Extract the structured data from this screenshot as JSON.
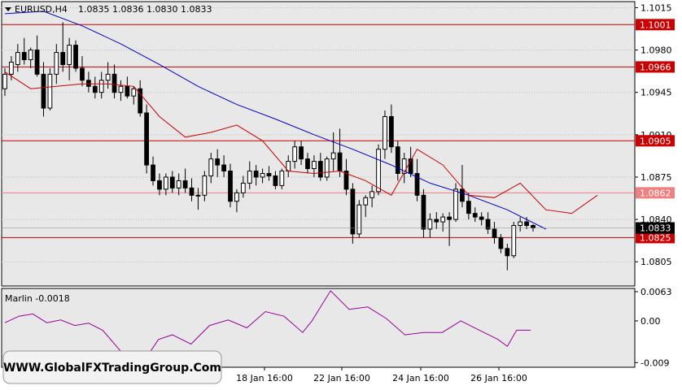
{
  "header": {
    "symbol_label": "EURUSD,H4",
    "ohlc_label": "1.0835 1.0836 1.0830 1.0833",
    "dropdown_icon": "triangle-down-icon"
  },
  "indicator": {
    "label": "Marlin -0.0018",
    "axis_ticks": [
      "0.0063",
      "0.00",
      "-0.009"
    ]
  },
  "watermark": "WWW.GlobalFXTradingGroup.Com",
  "colors": {
    "background": "#ffffff",
    "plot_bg": "#e8e8e8",
    "grid": "#bdbdbd",
    "level_line": "#cc0000",
    "level_label_bg": "#cc0000",
    "level_label_text": "#ffffff",
    "light_level_bg": "#f08080",
    "slow_ma": "#0000cc",
    "fast_ma": "#cc0000",
    "marlin": "#990099",
    "candle": "#000000",
    "price_label_bg": "#000000"
  },
  "chart_data": {
    "type": "candlestick",
    "price_axis": {
      "ticks": [
        "1.1015",
        "1.0980",
        "1.0945",
        "1.0910",
        "1.0875",
        "1.0840",
        "1.0805"
      ],
      "range": [
        1.0785,
        1.102
      ]
    },
    "time_axis": {
      "labels": [
        "18 Jan 16:00",
        "22 Jan 16:00",
        "24 Jan 16:00",
        "26 Jan 16:00"
      ]
    },
    "levels": [
      {
        "value": 1.1001,
        "label": "1.1001",
        "style": "line"
      },
      {
        "value": 1.0966,
        "label": "1.0966",
        "style": "line"
      },
      {
        "value": 1.0905,
        "label": "1.0905",
        "style": "line"
      },
      {
        "value": 1.0862,
        "label": "1.0862",
        "style": "light"
      },
      {
        "value": 1.0825,
        "label": "1.0825",
        "style": "line"
      }
    ],
    "current_price": {
      "value": 1.0833,
      "label": "1.0833"
    },
    "candles": [
      [
        1.0948,
        1.0965,
        1.0942,
        1.096
      ],
      [
        1.096,
        1.0975,
        1.0955,
        1.097
      ],
      [
        1.0968,
        1.0985,
        1.0962,
        1.0978
      ],
      [
        1.0978,
        1.099,
        1.0968,
        1.0972
      ],
      [
        1.0972,
        1.0982,
        1.0965,
        1.098
      ],
      [
        1.098,
        1.0992,
        1.0958,
        1.096
      ],
      [
        1.096,
        1.097,
        1.0925,
        1.0932
      ],
      [
        1.0932,
        1.0965,
        1.093,
        1.096
      ],
      [
        1.096,
        1.0985,
        1.0952,
        1.0978
      ],
      [
        1.0978,
        1.1003,
        1.0962,
        1.0968
      ],
      [
        1.0968,
        1.099,
        1.0955,
        1.0984
      ],
      [
        1.0984,
        1.0988,
        1.0962,
        1.0965
      ],
      [
        1.0965,
        1.0975,
        1.095,
        1.0955
      ],
      [
        1.0955,
        1.0962,
        1.0945,
        1.095
      ],
      [
        1.095,
        1.0958,
        1.094,
        1.0945
      ],
      [
        1.0945,
        1.0962,
        1.094,
        1.0955
      ],
      [
        1.0955,
        1.097,
        1.0948,
        1.096
      ],
      [
        1.096,
        1.0968,
        1.094,
        1.0945
      ],
      [
        1.0945,
        1.0955,
        1.0938,
        1.095
      ],
      [
        1.095,
        1.0958,
        1.094,
        1.0942
      ],
      [
        1.0942,
        1.095,
        1.0935,
        1.0948
      ],
      [
        1.0948,
        1.0955,
        1.0925,
        1.0928
      ],
      [
        1.0928,
        1.0935,
        1.0878,
        1.0885
      ],
      [
        1.0885,
        1.0892,
        1.0868,
        1.0872
      ],
      [
        1.0872,
        1.0878,
        1.086,
        1.0865
      ],
      [
        1.0865,
        1.0878,
        1.086,
        1.0875
      ],
      [
        1.0875,
        1.088,
        1.0862,
        1.0866
      ],
      [
        1.0866,
        1.0878,
        1.086,
        1.0872
      ],
      [
        1.0872,
        1.0882,
        1.0862,
        1.0866
      ],
      [
        1.0866,
        1.0874,
        1.0855,
        1.086
      ],
      [
        1.086,
        1.0866,
        1.0848,
        1.086
      ],
      [
        1.086,
        1.088,
        1.0855,
        1.0876
      ],
      [
        1.0876,
        1.0895,
        1.087,
        1.089
      ],
      [
        1.089,
        1.0898,
        1.0875,
        1.0885
      ],
      [
        1.0885,
        1.0893,
        1.0875,
        1.088
      ],
      [
        1.088,
        1.0886,
        1.085,
        1.0855
      ],
      [
        1.0855,
        1.0865,
        1.0846,
        1.0862
      ],
      [
        1.0862,
        1.0876,
        1.0858,
        1.087
      ],
      [
        1.087,
        1.0888,
        1.0865,
        1.088
      ],
      [
        1.088,
        1.0885,
        1.0868,
        1.0875
      ],
      [
        1.0875,
        1.0882,
        1.087,
        1.0878
      ],
      [
        1.0878,
        1.0884,
        1.0872,
        1.0876
      ],
      [
        1.0876,
        1.088,
        1.0865,
        1.0868
      ],
      [
        1.0868,
        1.0882,
        1.0865,
        1.088
      ],
      [
        1.088,
        1.0893,
        1.0875,
        1.0888
      ],
      [
        1.0888,
        1.0905,
        1.0882,
        1.09
      ],
      [
        1.09,
        1.0905,
        1.0885,
        1.089
      ],
      [
        1.089,
        1.0895,
        1.0878,
        1.0882
      ],
      [
        1.0882,
        1.0893,
        1.0875,
        1.0888
      ],
      [
        1.0888,
        1.0895,
        1.0872,
        1.0875
      ],
      [
        1.0875,
        1.0892,
        1.0872,
        1.089
      ],
      [
        1.089,
        1.0912,
        1.088,
        1.0895
      ],
      [
        1.0895,
        1.0915,
        1.0875,
        1.088
      ],
      [
        1.088,
        1.089,
        1.086,
        1.0865
      ],
      [
        1.0865,
        1.087,
        1.082,
        1.0828
      ],
      [
        1.0828,
        1.0856,
        1.0825,
        1.0852
      ],
      [
        1.0852,
        1.086,
        1.0842,
        1.0858
      ],
      [
        1.0858,
        1.0868,
        1.085,
        1.0863
      ],
      [
        1.0863,
        1.0902,
        1.086,
        1.0898
      ],
      [
        1.0898,
        1.093,
        1.089,
        1.0925
      ],
      [
        1.0925,
        1.0935,
        1.0895,
        1.09
      ],
      [
        1.09,
        1.0905,
        1.0872,
        1.0878
      ],
      [
        1.0878,
        1.0895,
        1.087,
        1.089
      ],
      [
        1.089,
        1.09,
        1.0875,
        1.0878
      ],
      [
        1.0878,
        1.089,
        1.0855,
        1.086
      ],
      [
        1.086,
        1.0865,
        1.0825,
        1.0832
      ],
      [
        1.0832,
        1.0845,
        1.0825,
        1.084
      ],
      [
        1.084,
        1.0846,
        1.0832,
        1.0838
      ],
      [
        1.0838,
        1.0845,
        1.083,
        1.0842
      ],
      [
        1.0842,
        1.0846,
        1.0818,
        1.084
      ],
      [
        1.084,
        1.087,
        1.0838,
        1.0865
      ],
      [
        1.0865,
        1.0885,
        1.085,
        1.0855
      ],
      [
        1.0855,
        1.0862,
        1.084,
        1.0845
      ],
      [
        1.0845,
        1.085,
        1.0838,
        1.0842
      ],
      [
        1.0842,
        1.0846,
        1.0835,
        1.084
      ],
      [
        1.084,
        1.0846,
        1.0828,
        1.0832
      ],
      [
        1.0832,
        1.0838,
        1.082,
        1.0825
      ],
      [
        1.0825,
        1.0828,
        1.0812,
        1.0816
      ],
      [
        1.0816,
        1.082,
        1.0798,
        1.081
      ],
      [
        1.081,
        1.0838,
        1.0808,
        1.0835
      ],
      [
        1.0835,
        1.0842,
        1.083,
        1.0838
      ],
      [
        1.0838,
        1.0842,
        1.0832,
        1.0835
      ],
      [
        1.0835,
        1.0836,
        1.083,
        1.0833
      ]
    ],
    "slow_ma": [
      [
        0,
        1.101
      ],
      [
        6,
        1.1012
      ],
      [
        12,
        1.1
      ],
      [
        18,
        1.0985
      ],
      [
        24,
        1.0968
      ],
      [
        30,
        1.095
      ],
      [
        36,
        1.0935
      ],
      [
        42,
        1.0923
      ],
      [
        48,
        1.091
      ],
      [
        54,
        1.0898
      ],
      [
        60,
        1.0885
      ],
      [
        66,
        1.087
      ],
      [
        72,
        1.086
      ],
      [
        78,
        1.0848
      ],
      [
        84,
        1.0832
      ]
    ],
    "fast_ma": [
      [
        0,
        1.0962
      ],
      [
        4,
        1.0948
      ],
      [
        8,
        1.095
      ],
      [
        12,
        1.0952
      ],
      [
        16,
        1.0952
      ],
      [
        20,
        1.095
      ],
      [
        24,
        1.0925
      ],
      [
        28,
        1.0908
      ],
      [
        32,
        1.0912
      ],
      [
        36,
        1.0918
      ],
      [
        40,
        1.0905
      ],
      [
        44,
        1.088
      ],
      [
        48,
        1.0878
      ],
      [
        52,
        1.088
      ],
      [
        56,
        1.0872
      ],
      [
        60,
        1.086
      ],
      [
        64,
        1.0898
      ],
      [
        68,
        1.0885
      ],
      [
        72,
        1.086
      ],
      [
        76,
        1.0858
      ],
      [
        80,
        1.087
      ],
      [
        84,
        1.0848
      ],
      [
        88,
        1.0845
      ],
      [
        92,
        1.086
      ]
    ],
    "marlin": {
      "name": "Marlin",
      "range": [
        -0.01,
        0.007
      ],
      "points": [
        [
          0,
          -0.0004
        ],
        [
          3,
          0.001
        ],
        [
          6,
          0.0015
        ],
        [
          9,
          -0.0004
        ],
        [
          12,
          0.0002
        ],
        [
          15,
          -0.001
        ],
        [
          18,
          -0.0005
        ],
        [
          21,
          -0.002
        ],
        [
          24,
          -0.0055
        ],
        [
          27,
          -0.009
        ],
        [
          30,
          -0.0085
        ],
        [
          33,
          -0.004
        ],
        [
          36,
          -0.003
        ],
        [
          40,
          -0.005
        ],
        [
          44,
          -0.001
        ],
        [
          48,
          0.0002
        ],
        [
          52,
          -0.0015
        ],
        [
          56,
          0.002
        ],
        [
          60,
          0.001
        ],
        [
          64,
          -0.0025
        ],
        [
          66,
          0.0
        ],
        [
          70,
          0.0065
        ],
        [
          74,
          0.0025
        ],
        [
          78,
          0.003
        ],
        [
          82,
          0.0005
        ],
        [
          86,
          -0.003
        ],
        [
          90,
          -0.0025
        ],
        [
          94,
          -0.0025
        ],
        [
          98,
          0.0
        ],
        [
          102,
          -0.002
        ],
        [
          106,
          -0.004
        ],
        [
          108,
          -0.0055
        ],
        [
          110,
          -0.002
        ],
        [
          113,
          -0.002
        ]
      ]
    }
  }
}
